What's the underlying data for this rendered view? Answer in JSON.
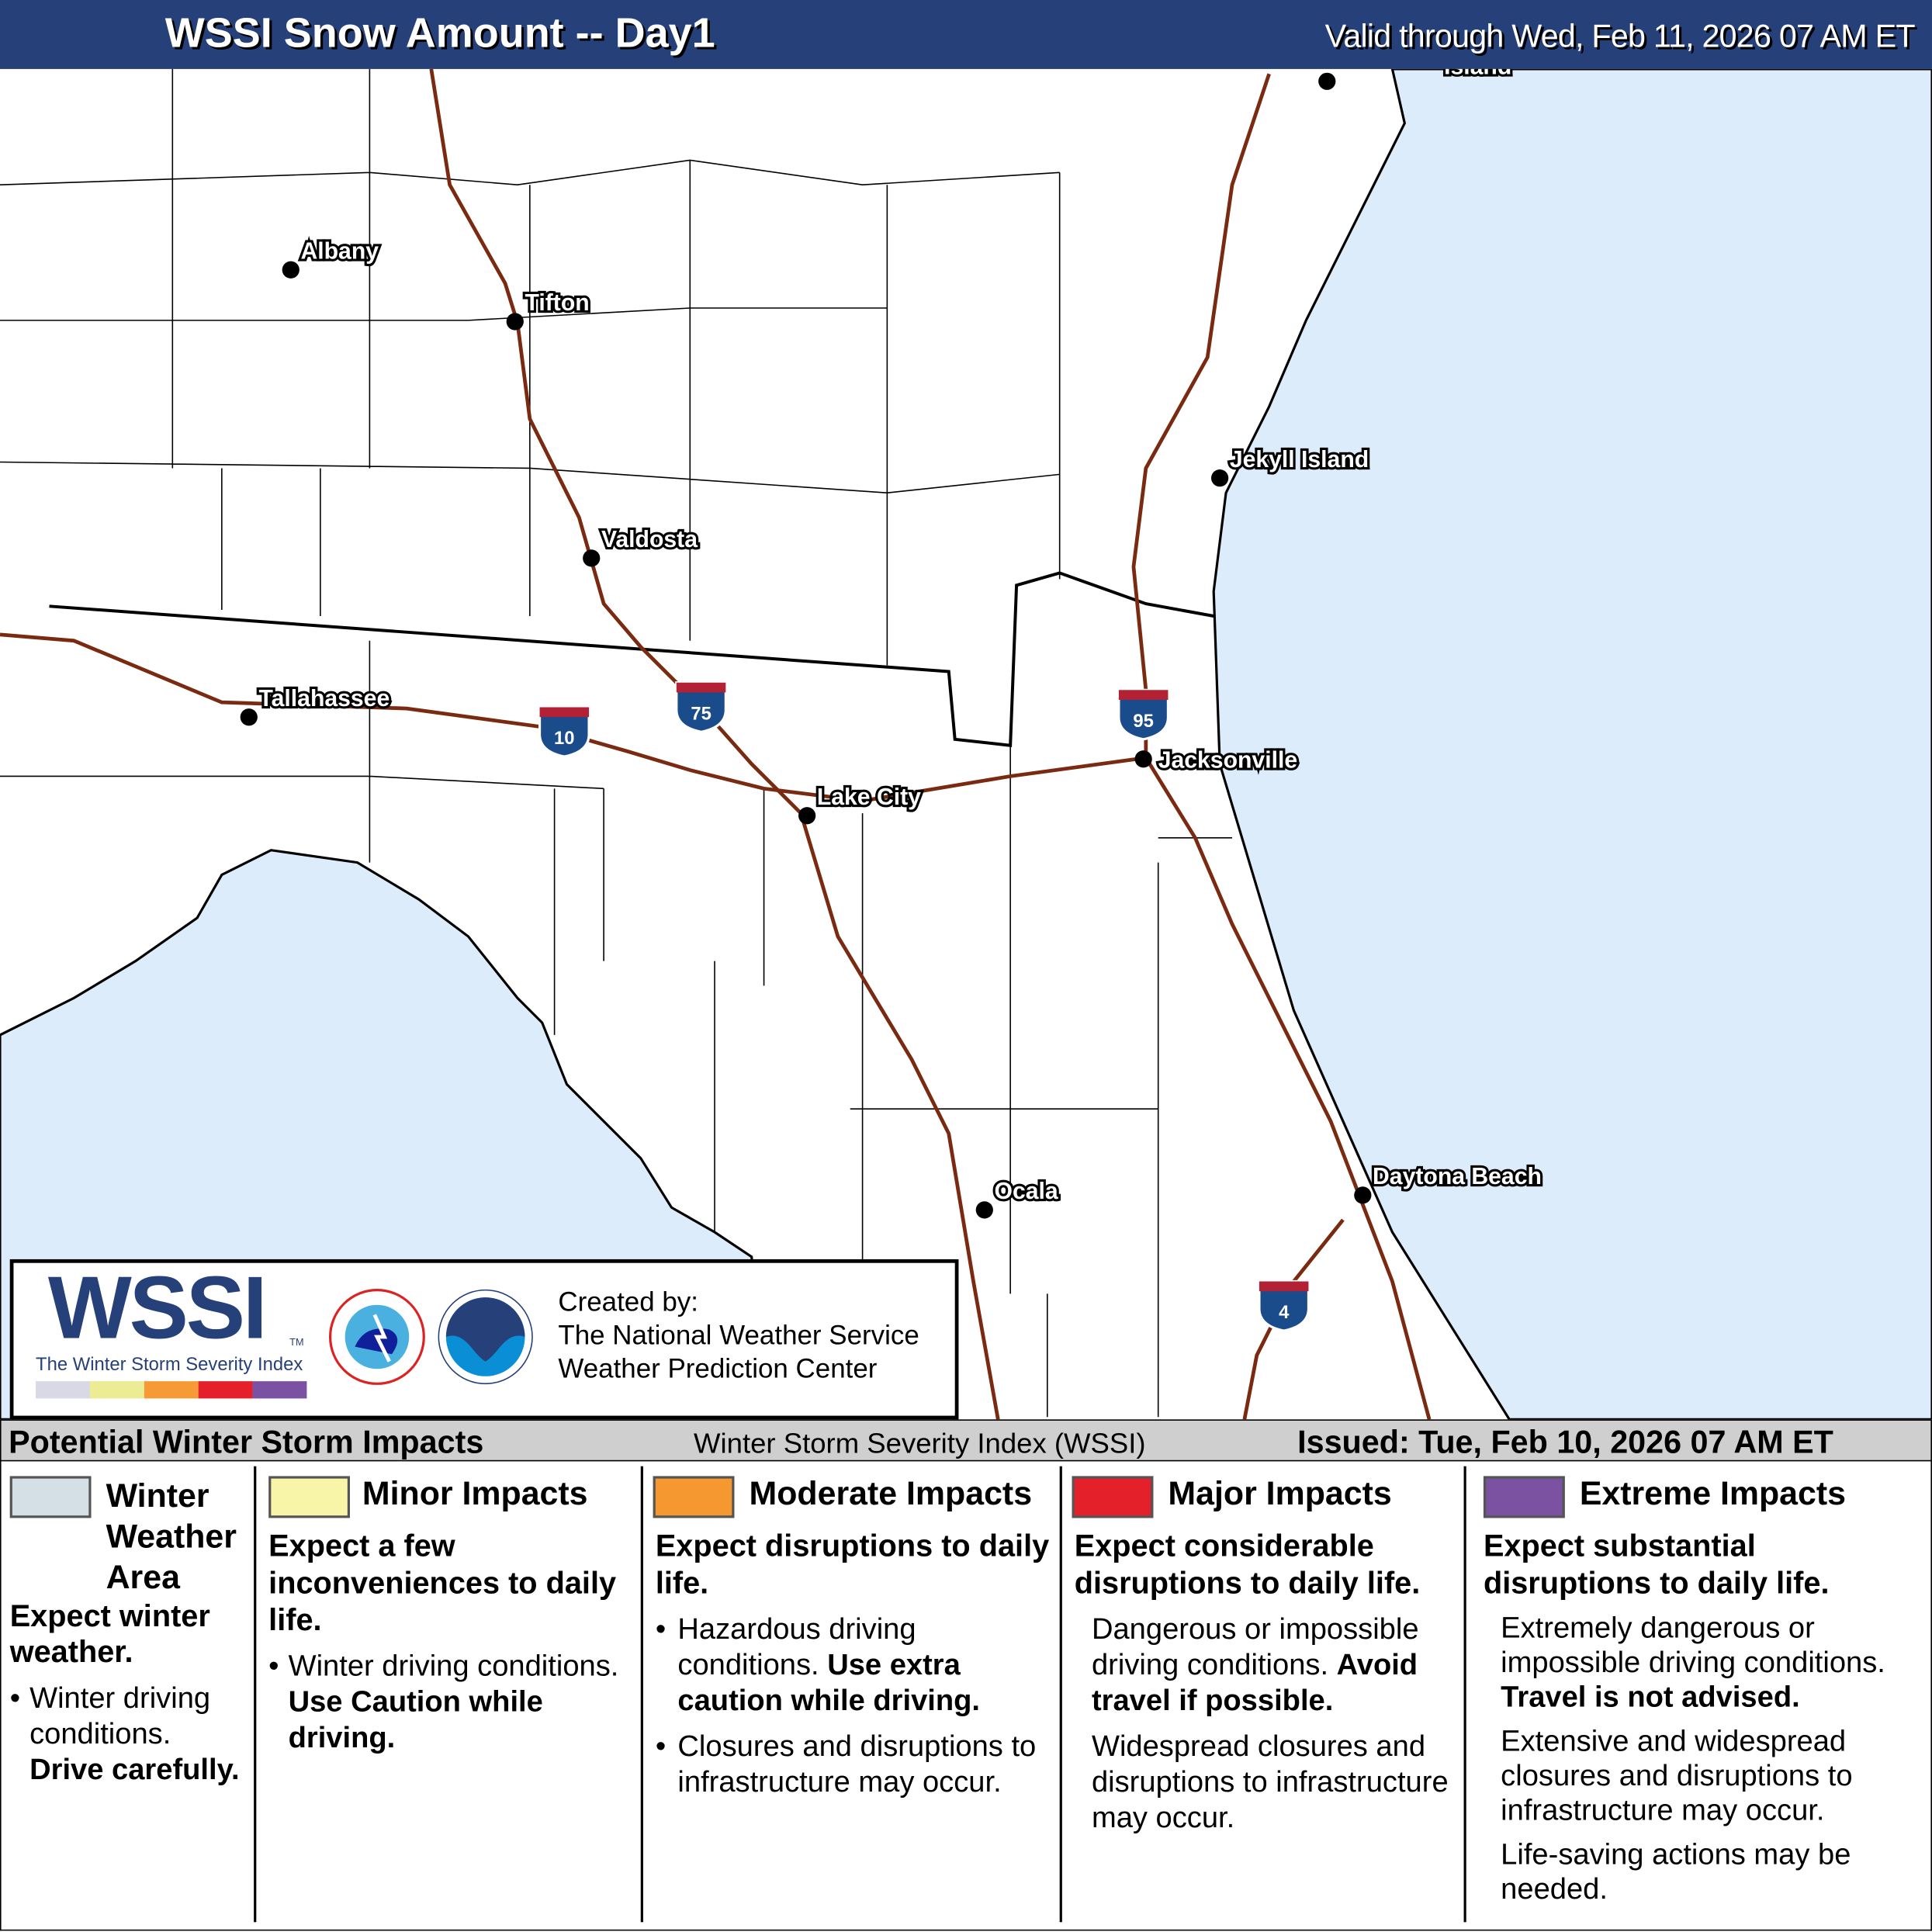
{
  "header": {
    "title": "WSSI Snow Amount -- Day1",
    "valid": "Valid through Wed, Feb 11, 2026 07 AM ET"
  },
  "map": {
    "colors": {
      "water": "#dcecfb",
      "land": "#ffffff",
      "interstate": "#7a2a10"
    },
    "cities": [
      {
        "name": "Albany"
      },
      {
        "name": "Tifton"
      },
      {
        "name": "Valdosta"
      },
      {
        "name": "Tallahassee"
      },
      {
        "name": "Lake City"
      },
      {
        "name": "Jacksonville"
      },
      {
        "name": "Jekyll Island"
      },
      {
        "name": "Ocala"
      },
      {
        "name": "Daytona Beach"
      },
      {
        "name": "Island"
      }
    ],
    "interstates": [
      "10",
      "75",
      "95",
      "4"
    ]
  },
  "logo": {
    "wssi": "WSSI",
    "tm": "TM",
    "subtitle": "The Winter Storm Severity Index",
    "colors": [
      "#d9d9e6",
      "#ecec95",
      "#f59a35",
      "#e4212b",
      "#7b52a1"
    ],
    "created_by": "Created by:",
    "org1": "The National Weather Service",
    "org2": "Weather Prediction Center"
  },
  "legend": {
    "left": "Potential Winter Storm Impacts",
    "center": "Winter Storm Severity Index (WSSI)",
    "issued": "Issued: Tue, Feb 10, 2026 07 AM ET",
    "columns": [
      {
        "title": "Winter Weather Area",
        "color": "#d4dfe6",
        "summary": "Expect winter weather.",
        "bullet": "Winter driving conditions.",
        "bold": "Drive carefully."
      },
      {
        "title": "Minor Impacts",
        "color": "#f8f5a8",
        "summary": "Expect a few inconveniences to daily life.",
        "bullet": "Winter driving conditions.",
        "bold": "Use Caution while driving."
      },
      {
        "title": "Moderate Impacts",
        "color": "#f5982f",
        "summary": "Expect disruptions to daily life.",
        "bullet": "Hazardous driving conditions.",
        "bold": "Use extra caution while driving.",
        "bullet2": "Closures and disruptions to infrastructure may occur."
      },
      {
        "title": "Major Impacts",
        "color": "#e4202a",
        "summary": "Expect considerable disruptions to daily life.",
        "bullet": "Dangerous or impossible driving conditions.",
        "bold": "Avoid travel if possible.",
        "bullet2": "Widespread closures and disruptions to infrastructure may occur."
      },
      {
        "title": "Extreme Impacts",
        "color": "#7b52a1",
        "summary": "Expect substantial disruptions to daily life.",
        "bullet": "Extremely dangerous or impossible driving conditions.",
        "bold": "Travel is not advised.",
        "bullet2": "Extensive and widespread closures and disruptions to infrastructure may occur.",
        "bullet3": "Life-saving actions may be needed."
      }
    ]
  }
}
